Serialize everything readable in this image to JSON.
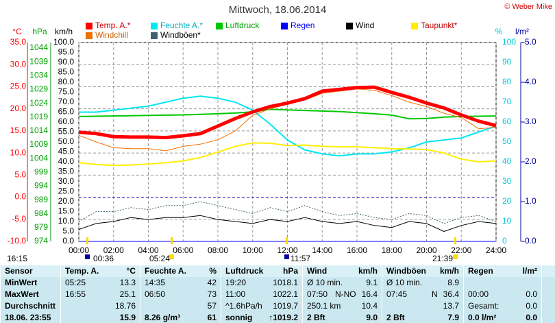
{
  "chart_data": {
    "type": "line",
    "title": "Mittwoch, 18.06.2014",
    "credit": "© Weber Mike",
    "x": [
      0,
      1,
      2,
      3,
      4,
      5,
      6,
      7,
      8,
      9,
      10,
      11,
      12,
      13,
      14,
      15,
      16,
      17,
      18,
      19,
      20,
      21,
      22,
      23,
      24
    ],
    "xlim": [
      0,
      24
    ],
    "xticks": [
      {
        "value": 0,
        "label": "00:00"
      },
      {
        "value": 2,
        "label": "02:00"
      },
      {
        "value": 4,
        "label": "04:00"
      },
      {
        "value": 6,
        "label": "06:00"
      },
      {
        "value": 8,
        "label": "08:00"
      },
      {
        "value": 10,
        "label": "10:00"
      },
      {
        "value": 12,
        "label": "12:00"
      },
      {
        "value": 14,
        "label": "14:00"
      },
      {
        "value": 16,
        "label": "16:00"
      },
      {
        "value": 18,
        "label": "18:00"
      },
      {
        "value": 20,
        "label": "20:00"
      },
      {
        "value": 22,
        "label": "22:00"
      },
      {
        "value": 24,
        "label": "24:00"
      }
    ],
    "axes": [
      {
        "label": "°C",
        "color": "#ff0000",
        "lim": [
          -10,
          35
        ],
        "ticks": [
          {
            "value": -10,
            "label": "-10.0"
          },
          {
            "value": -5,
            "label": "-5.0"
          },
          {
            "value": 0,
            "label": "0.0"
          },
          {
            "value": 5,
            "label": "5.0"
          },
          {
            "value": 10,
            "label": "10.0"
          },
          {
            "value": 15,
            "label": "15.0"
          },
          {
            "value": 20,
            "label": "20.0"
          },
          {
            "value": 25,
            "label": "25.0"
          },
          {
            "value": 30,
            "label": "30.0"
          },
          {
            "value": 35,
            "label": "35.0"
          }
        ]
      },
      {
        "label": "hPa",
        "color": "#00a000",
        "lim": [
          974,
          1046
        ],
        "ticks": [
          974,
          979,
          984,
          989,
          994,
          999,
          1004,
          1009,
          1014,
          1019,
          1024,
          1029,
          1034,
          1039,
          1044
        ]
      },
      {
        "label": "km/h",
        "color": "#000000",
        "lim": [
          0,
          100
        ],
        "ticks": [
          {
            "value": 0,
            "label": "0.0"
          },
          {
            "value": 5,
            "label": "5.0"
          },
          {
            "value": 10,
            "label": "10.0"
          },
          {
            "value": 15,
            "label": "15.0"
          },
          {
            "value": 20,
            "label": "20.0"
          },
          {
            "value": 25,
            "label": "25.0"
          },
          {
            "value": 30,
            "label": "30.0"
          },
          {
            "value": 35,
            "label": "35.0"
          },
          {
            "value": 40,
            "label": "40.0"
          },
          {
            "value": 45,
            "label": "45.0"
          },
          {
            "value": 50,
            "label": "50.0"
          },
          {
            "value": 55,
            "label": "55.0"
          },
          {
            "value": 60,
            "label": "60.0"
          },
          {
            "value": 65,
            "label": "65.0"
          },
          {
            "value": 70,
            "label": "70.0"
          },
          {
            "value": 75,
            "label": "75.0"
          },
          {
            "value": 80,
            "label": "80.0"
          },
          {
            "value": 85,
            "label": "85.0"
          },
          {
            "value": 90,
            "label": "90.0"
          },
          {
            "value": 95,
            "label": "95.0"
          },
          {
            "value": 100,
            "label": "100.0"
          }
        ]
      },
      {
        "label": "%",
        "color": "#00c8d8",
        "lim": [
          0,
          100
        ],
        "ticks": [
          0,
          10,
          20,
          30,
          40,
          50,
          60,
          70,
          80,
          90,
          100
        ]
      },
      {
        "label": "l/m²",
        "color": "#0000a0",
        "lim": [
          0,
          5
        ],
        "ticks": [
          {
            "value": 0,
            "label": "0.0"
          },
          {
            "value": 1,
            "label": "1.0"
          },
          {
            "value": 2,
            "label": "2.0"
          },
          {
            "value": 3,
            "label": "3.0"
          },
          {
            "value": 4,
            "label": "4.0"
          },
          {
            "value": 5,
            "label": "5.0"
          }
        ]
      }
    ],
    "grid": true,
    "series": [
      {
        "name": "Temp. A.*",
        "color": "#ff0000",
        "axis": 0,
        "line_width": 5,
        "values": [
          14.7,
          14.4,
          13.7,
          13.6,
          13.6,
          13.5,
          13.9,
          14.4,
          16.1,
          17.8,
          19.3,
          20.5,
          21.3,
          22.3,
          24.0,
          24.4,
          24.8,
          24.9,
          23.7,
          22.6,
          21.3,
          20.2,
          18.6,
          17.2,
          16.2
        ]
      },
      {
        "name": "Feuchte A.*",
        "color": "#00e8f0",
        "axis": 3,
        "line_width": 2,
        "values": [
          65,
          65,
          66,
          67,
          68,
          70,
          72,
          73,
          72,
          70,
          66,
          59,
          51,
          46,
          44,
          43,
          44,
          44,
          45,
          47,
          50,
          51,
          52,
          55,
          58
        ]
      },
      {
        "name": "Luftdruck",
        "color": "#00c800",
        "axis": 1,
        "line_width": 2,
        "values": [
          1019.2,
          1019.3,
          1019.4,
          1019.5,
          1019.6,
          1019.7,
          1019.8,
          1020.0,
          1020.2,
          1020.5,
          1020.9,
          1021.8,
          1021.6,
          1021.4,
          1021.2,
          1021.0,
          1020.6,
          1020.2,
          1019.7,
          1018.4,
          1018.5,
          1019.0,
          1019.2,
          1019.3,
          1019.4
        ]
      },
      {
        "name": "Regen",
        "color": "#0000ff",
        "axis": 4,
        "line_width": 1,
        "values": [
          0,
          0,
          0,
          0,
          0,
          0,
          0,
          0,
          0,
          0,
          0,
          0,
          0,
          0,
          0,
          0,
          0,
          0,
          0,
          0,
          0,
          0,
          0,
          0,
          0
        ]
      },
      {
        "name": "Wind",
        "color": "#000000",
        "axis": 2,
        "line_width": 1,
        "values": [
          6,
          9,
          10,
          12,
          11,
          12,
          12,
          13,
          11,
          10,
          9,
          11,
          10,
          12,
          10,
          9,
          10,
          8,
          7,
          10,
          9,
          5,
          8,
          10,
          9
        ]
      },
      {
        "name": "Taupunkt*",
        "color": "#ffee00",
        "axis": 0,
        "line_width": 2,
        "values": [
          7.8,
          7.4,
          7.2,
          7.3,
          7.5,
          7.8,
          8.2,
          9.0,
          10.2,
          11.5,
          12.3,
          12.2,
          11.7,
          11.8,
          11.5,
          11.4,
          11.4,
          11.2,
          11.0,
          10.9,
          10.8,
          10.0,
          8.6,
          8.0,
          8.2
        ]
      },
      {
        "name": "Windchill",
        "color": "#f07000",
        "axis": 0,
        "line_width": 1,
        "values": [
          14,
          12.5,
          11.2,
          11,
          11,
          10.5,
          11.5,
          12,
          13,
          15,
          18.5,
          20,
          21,
          22,
          23.5,
          24,
          24.5,
          24.2,
          23,
          21.5,
          20.5,
          19,
          18,
          15.5,
          15.8
        ]
      },
      {
        "name": "Windböen*",
        "color": "#406070",
        "axis": 2,
        "line_width": 1,
        "values": [
          10,
          15,
          15,
          17,
          16,
          18,
          18,
          20,
          18,
          16,
          14,
          17,
          15,
          18,
          15,
          13,
          14,
          12,
          11,
          14,
          13,
          9,
          12,
          13,
          10
        ]
      }
    ],
    "annotations": [
      "16:15",
      "00:36",
      "05:24",
      "11:57",
      "21:39"
    ]
  },
  "table": {
    "header": [
      [
        "Sensor"
      ],
      [
        "Temp. A.",
        "°C"
      ],
      [
        "Feuchte A.",
        "%"
      ],
      [
        "Luftdruck",
        "hPa"
      ],
      [
        "Wind",
        "km/h"
      ],
      [
        "Windböen",
        "km/h"
      ],
      [
        "Regen",
        "l/m²"
      ]
    ],
    "rows": [
      [
        [
          "MinWert"
        ],
        [
          "05:25",
          "13.3"
        ],
        [
          "14:35",
          "42"
        ],
        [
          "19:20",
          "1018.1"
        ],
        [
          "Ø 10 min.",
          "9.1"
        ],
        [
          "Ø 10 min.",
          "8.9"
        ],
        []
      ],
      [
        [
          "MaxWert"
        ],
        [
          "16:55",
          "25.1"
        ],
        [
          "06:50",
          "73"
        ],
        [
          "11:00",
          "1022.1"
        ],
        [
          "07:50",
          "N-NO",
          "16.4"
        ],
        [
          "07:45",
          "N",
          "36.4"
        ],
        [
          "00:00",
          "0.0"
        ]
      ],
      [
        [
          "Durchschnitt"
        ],
        [
          "18.76"
        ],
        [
          "57"
        ],
        [
          "^1.6hPa/h",
          "1019.7"
        ],
        [
          "250.1 km",
          "10.4"
        ],
        [
          "13.7"
        ],
        [
          "Gesamt:",
          "0.0"
        ]
      ],
      [
        [
          "18.06. 23:55"
        ],
        [
          "15.9"
        ],
        [
          "8.26 g/m³",
          "61"
        ],
        [
          "sonnig",
          "↑1019.2"
        ],
        [
          "2 Bft",
          "9.0"
        ],
        [
          "2 Bft",
          "7.9"
        ],
        [
          "0.0 l/m²",
          "0.0"
        ]
      ]
    ]
  }
}
